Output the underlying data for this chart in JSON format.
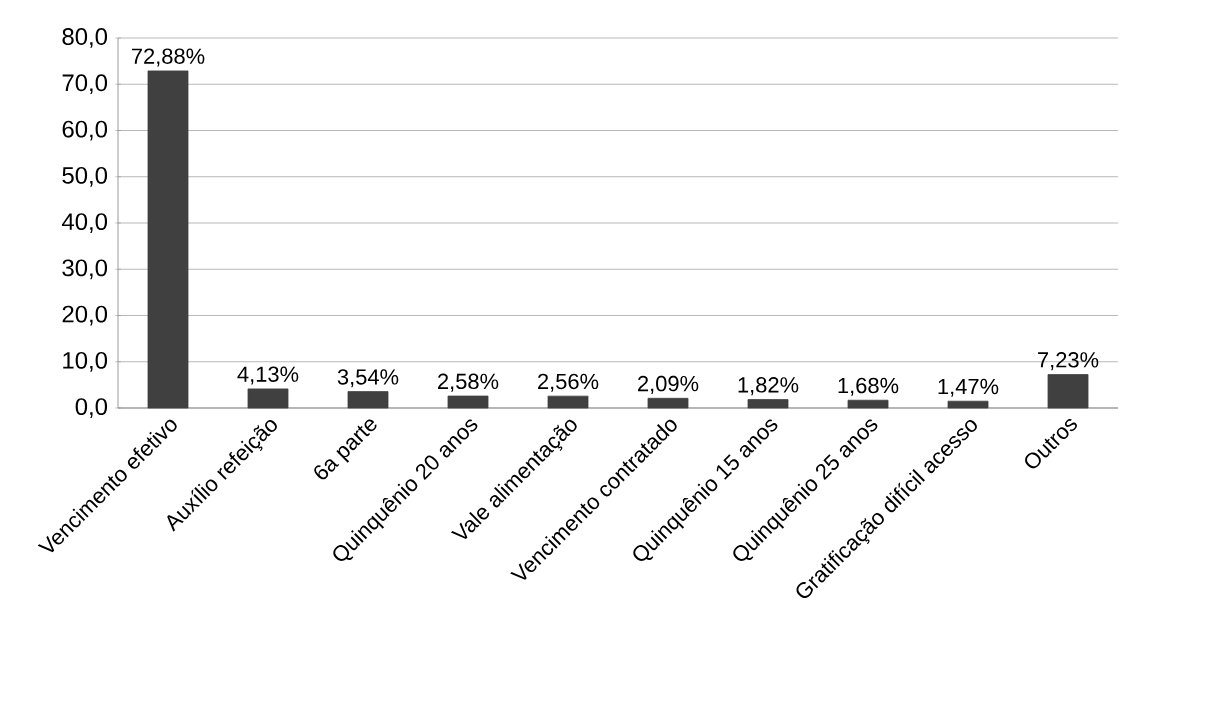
{
  "chart_data": {
    "type": "bar",
    "categories": [
      "Vencimento efetivo",
      "Auxílio refeição",
      "6a parte",
      "Quinquênio 20 anos",
      "Vale alimentação",
      "Vencimento contratado",
      "Quinquênio 15 anos",
      "Quinquênio 25 anos",
      "Gratificação difícil acesso",
      "Outros"
    ],
    "values": [
      72.88,
      4.13,
      3.54,
      2.58,
      2.56,
      2.09,
      1.82,
      1.68,
      1.47,
      7.23
    ],
    "value_labels": [
      "72,88%",
      "4,13%",
      "3,54%",
      "2,58%",
      "2,56%",
      "2,09%",
      "1,82%",
      "1,68%",
      "1,47%",
      "7,23%"
    ],
    "color": "#404040",
    "ylim": [
      0,
      80
    ],
    "yticks": [
      {
        "value": 0,
        "label": "0,0"
      },
      {
        "value": 10,
        "label": "10,0"
      },
      {
        "value": 20,
        "label": "20,0"
      },
      {
        "value": 30,
        "label": "30,0"
      },
      {
        "value": 40,
        "label": "40,0"
      },
      {
        "value": 50,
        "label": "50,0"
      },
      {
        "value": 60,
        "label": "60,0"
      },
      {
        "value": 70,
        "label": "70,0"
      },
      {
        "value": 80,
        "label": "80,0"
      }
    ],
    "grid": "y"
  }
}
